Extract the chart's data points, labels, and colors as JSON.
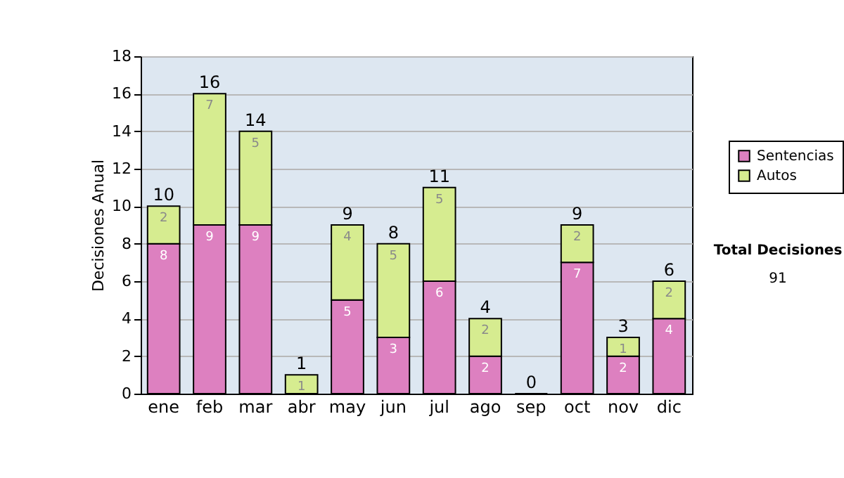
{
  "chart_data": {
    "type": "bar",
    "stacked": true,
    "ylabel": "Decisiones Anual",
    "categories": [
      "ene",
      "feb",
      "mar",
      "abr",
      "may",
      "jun",
      "jul",
      "ago",
      "sep",
      "oct",
      "nov",
      "dic"
    ],
    "series": [
      {
        "name": "Sentencias",
        "color": "#dd80c0",
        "values": [
          8,
          9,
          9,
          0,
          5,
          3,
          6,
          2,
          0,
          7,
          2,
          4
        ],
        "value_labels": [
          "8",
          "9",
          "9",
          null,
          "5",
          "3",
          "6",
          "2",
          null,
          "7",
          "2",
          "4"
        ]
      },
      {
        "name": "Autos",
        "color": "#d6ec90",
        "values": [
          2,
          7,
          5,
          1,
          4,
          5,
          5,
          2,
          0,
          2,
          1,
          2
        ],
        "value_labels": [
          "2",
          "7",
          "5",
          "1",
          "4",
          "5",
          "5",
          "2",
          null,
          "2",
          "1",
          "2"
        ]
      }
    ],
    "totals": [
      "10",
      "16",
      "14",
      "1",
      "9",
      "8",
      "11",
      "4",
      "0",
      "9",
      "3",
      "6"
    ],
    "ylim": [
      0,
      18
    ],
    "yticks": [
      0,
      2,
      4,
      6,
      8,
      10,
      12,
      14,
      16,
      18
    ],
    "grid": "y",
    "legend": "right",
    "annotations": [
      "Total Decisiones",
      "91"
    ]
  }
}
